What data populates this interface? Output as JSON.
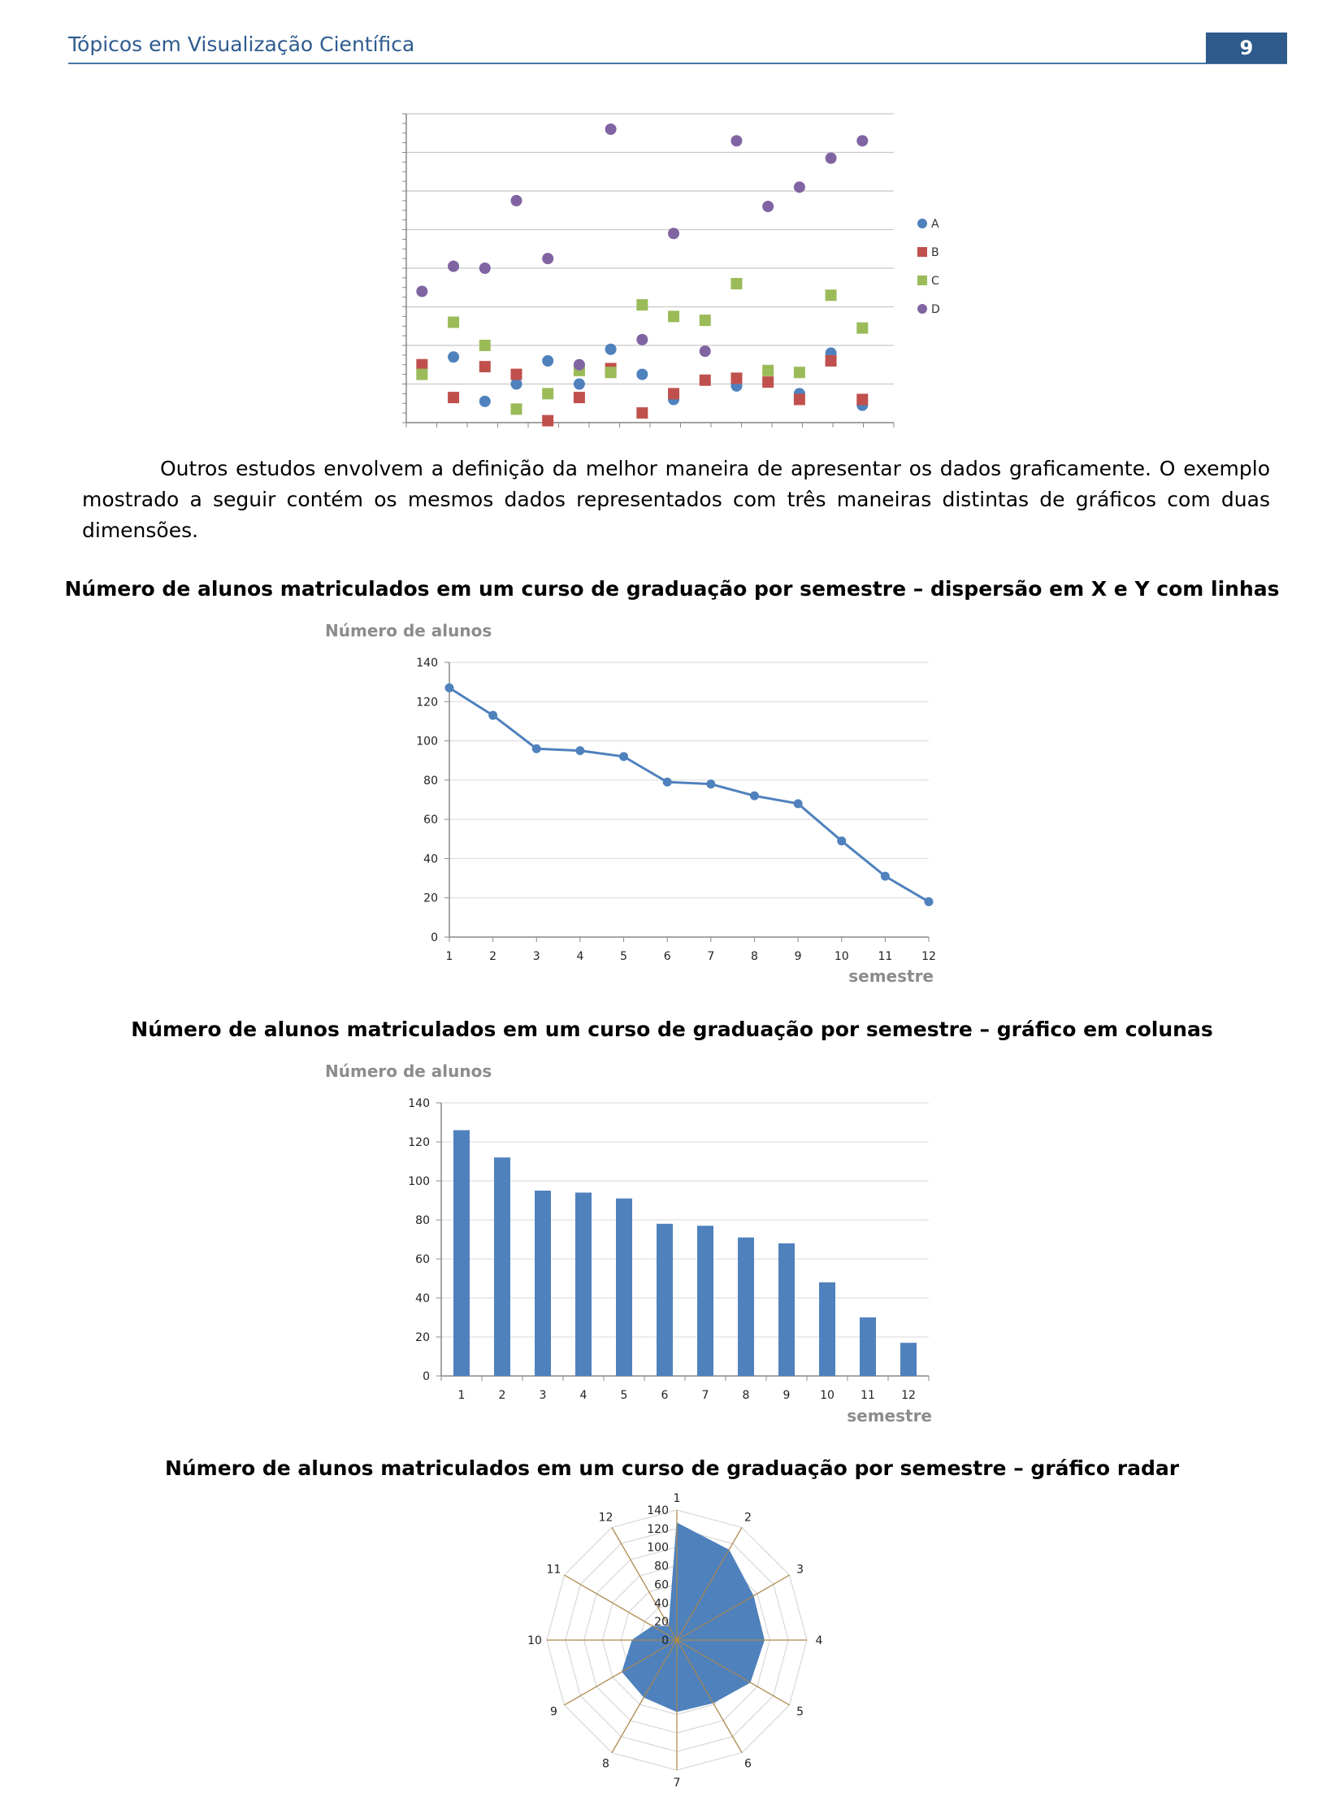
{
  "header": {
    "title": "Tópicos em Visualização Científica",
    "page_number": "9"
  },
  "paragraph": "Outros estudos envolvem a definição da melhor maneira de apresentar os dados graficamente. O exemplo mostrado a seguir contém os mesmos dados representados com três maneiras distintas de gráficos com duas dimensões.",
  "figures": {
    "line_title": "Número de alunos matriculados em um curso de graduação por semestre – dispersão em X e Y com linhas",
    "bar_title": "Número de alunos matriculados em um curso de graduação por semestre – gráfico em colunas",
    "radar_title": "Número de alunos matriculados em um curso de graduação por semestre – gráfico radar"
  },
  "chart_data": [
    {
      "type": "scatter",
      "x": [
        1,
        2,
        3,
        4,
        5,
        6,
        7,
        8,
        9,
        10,
        11,
        12,
        13,
        14,
        15
      ],
      "xlim": [
        0.5,
        16
      ],
      "ylim": [
        0,
        8
      ],
      "grid": true,
      "legend": "right",
      "series": [
        {
          "name": "A",
          "color": "#4F81BD",
          "marker": "circle",
          "values": [
            null,
            1.7,
            0.55,
            1.0,
            1.6,
            1.0,
            1.9,
            1.25,
            0.6,
            null,
            0.95,
            null,
            0.75,
            1.8,
            0.45
          ]
        },
        {
          "name": "B",
          "color": "#C0504D",
          "marker": "square",
          "values": [
            1.5,
            0.65,
            1.45,
            1.25,
            0.05,
            0.65,
            1.4,
            0.25,
            0.75,
            1.1,
            1.15,
            1.05,
            0.6,
            1.6,
            0.6
          ]
        },
        {
          "name": "C",
          "color": "#9BBB59",
          "marker": "square",
          "values": [
            1.25,
            2.6,
            2.0,
            0.35,
            0.75,
            1.35,
            1.3,
            3.05,
            2.75,
            2.65,
            3.6,
            1.35,
            1.3,
            3.3,
            2.45
          ]
        },
        {
          "name": "D",
          "color": "#8064A2",
          "marker": "circle",
          "values": [
            3.4,
            4.05,
            4.0,
            5.75,
            4.25,
            1.5,
            7.6,
            2.15,
            4.9,
            1.85,
            7.3,
            5.6,
            6.1,
            6.85,
            7.3
          ]
        }
      ]
    },
    {
      "type": "line",
      "x": [
        1,
        2,
        3,
        4,
        5,
        6,
        7,
        8,
        9,
        10,
        11,
        12
      ],
      "y": [
        127,
        113,
        96,
        95,
        92,
        79,
        78,
        72,
        68,
        49,
        31,
        18
      ],
      "xlim": [
        1,
        12
      ],
      "ylim": [
        0,
        140
      ],
      "yticks": [
        0,
        20,
        40,
        60,
        80,
        100,
        120,
        140
      ],
      "ylabel": "Número de alunos",
      "xlabel": "semestre",
      "color": "#4F81BD",
      "grid": true
    },
    {
      "type": "bar",
      "categories": [
        "1",
        "2",
        "3",
        "4",
        "5",
        "6",
        "7",
        "8",
        "9",
        "10",
        "11",
        "12"
      ],
      "values": [
        126,
        112,
        95,
        94,
        91,
        78,
        77,
        71,
        68,
        48,
        30,
        17
      ],
      "ylim": [
        0,
        140
      ],
      "yticks": [
        0,
        20,
        40,
        60,
        80,
        100,
        120,
        140
      ],
      "ylabel": "Número de alunos",
      "xlabel": "semestre",
      "color": "#4F81BD",
      "grid": true
    },
    {
      "type": "radar",
      "categories": [
        "1",
        "2",
        "3",
        "4",
        "5",
        "6",
        "7",
        "8",
        "9",
        "10",
        "11",
        "12"
      ],
      "values": [
        126,
        112,
        95,
        94,
        91,
        78,
        77,
        71,
        68,
        48,
        30,
        17
      ],
      "ticks": [
        0,
        20,
        40,
        60,
        80,
        100,
        120,
        140
      ],
      "rmax": 140,
      "color": "#4F81BD"
    }
  ]
}
